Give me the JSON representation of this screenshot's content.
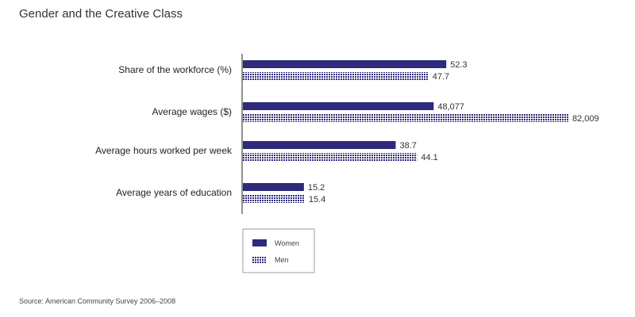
{
  "chart_data": {
    "type": "bar",
    "orientation": "horizontal",
    "title": "Gender and the Creative Class",
    "categories": [
      "Share of the workforce (%)",
      "Average wages ($)",
      "Average hours worked per week",
      "Average years of education"
    ],
    "series": [
      {
        "name": "Women",
        "values": [
          52.3,
          48077,
          38.7,
          15.2
        ],
        "labels": [
          "52.3",
          "48,077",
          "38.7",
          "15.2"
        ],
        "color": "#2e2a7c",
        "pattern": "solid"
      },
      {
        "name": "Men",
        "values": [
          47.7,
          82009,
          44.1,
          15.4
        ],
        "labels": [
          "47.7",
          "82,009",
          "44.1",
          "15.4"
        ],
        "color": "#2e2a7c",
        "pattern": "hatched"
      }
    ],
    "legend_position": "bottom-left",
    "grid": false
  },
  "source": "Source: American Community Survey 2006–2008"
}
